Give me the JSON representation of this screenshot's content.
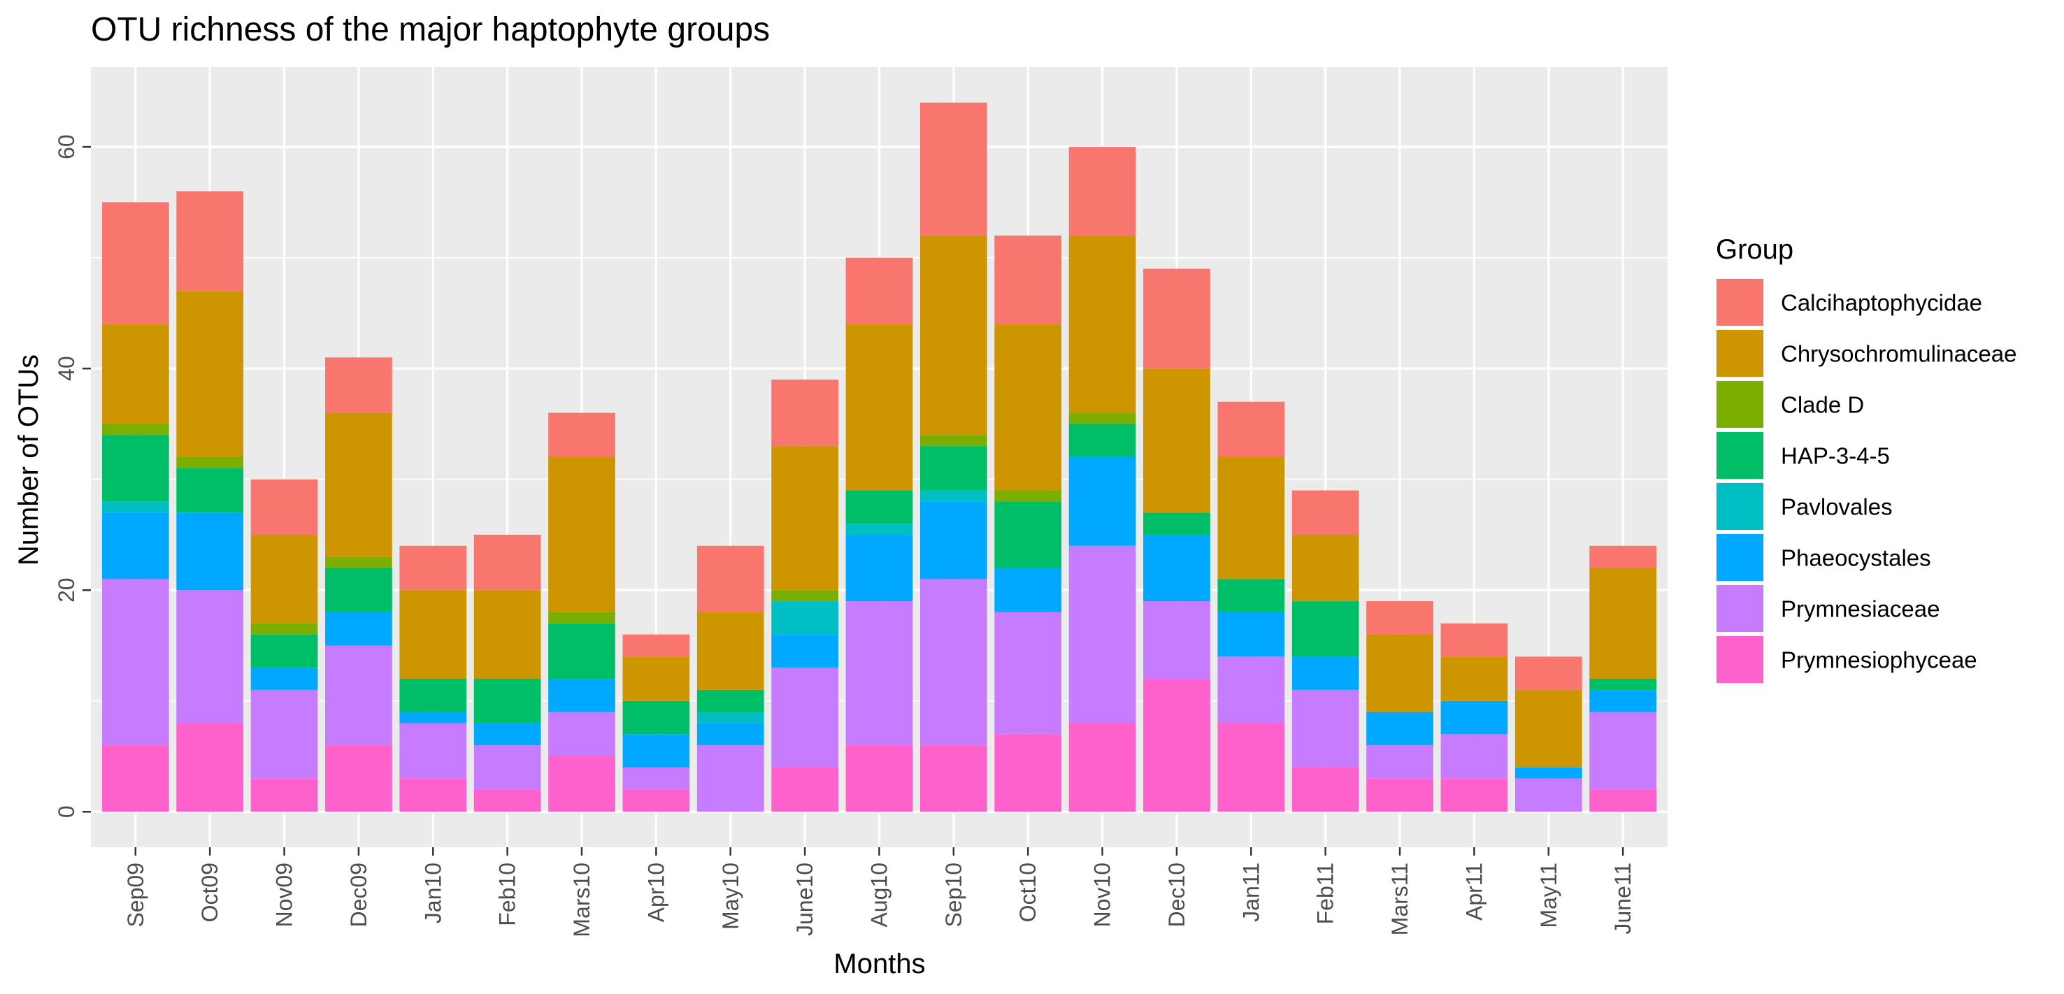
{
  "chart_data": {
    "type": "bar",
    "stacked": true,
    "title": "OTU richness of the major haptophyte groups",
    "xlabel": "Months",
    "ylabel": "Number of OTUs",
    "ylim": [
      -3.2,
      67.2
    ],
    "yticks": [
      0,
      20,
      40,
      60
    ],
    "grid": true,
    "legend_title": "Group",
    "legend_position": "right",
    "categories": [
      "Sep09",
      "Oct09",
      "Nov09",
      "Dec09",
      "Jan10",
      "Feb10",
      "Mars10",
      "Apr10",
      "May10",
      "June10",
      "Aug10",
      "Sep10",
      "Oct10",
      "Nov10",
      "Dec10",
      "Jan11",
      "Feb11",
      "Mars11",
      "Apr11",
      "May11",
      "June11"
    ],
    "series": [
      {
        "name": "Prymnesiophyceae",
        "color": "#FF61CC",
        "values": [
          6,
          8,
          3,
          6,
          3,
          2,
          5,
          2,
          0,
          4,
          6,
          6,
          7,
          8,
          12,
          8,
          4,
          3,
          3,
          0,
          2
        ]
      },
      {
        "name": "Prymnesiaceae",
        "color": "#C77CFF",
        "values": [
          15,
          12,
          8,
          9,
          5,
          4,
          4,
          2,
          6,
          9,
          13,
          15,
          11,
          16,
          7,
          6,
          7,
          3,
          4,
          3,
          7
        ]
      },
      {
        "name": "Phaeocystales",
        "color": "#00A9FF",
        "values": [
          6,
          7,
          2,
          3,
          1,
          2,
          3,
          3,
          2,
          3,
          6,
          7,
          4,
          8,
          6,
          4,
          3,
          3,
          3,
          1,
          2
        ]
      },
      {
        "name": "Pavlovales",
        "color": "#00BFC4",
        "values": [
          1,
          0,
          0,
          0,
          0,
          0,
          0,
          0,
          1,
          3,
          1,
          1,
          0,
          0,
          0,
          0,
          0,
          0,
          0,
          0,
          0
        ]
      },
      {
        "name": "HAP-3-4-5",
        "color": "#00BE67",
        "values": [
          6,
          4,
          3,
          4,
          3,
          4,
          5,
          3,
          2,
          0,
          3,
          4,
          6,
          3,
          2,
          3,
          5,
          0,
          0,
          0,
          1
        ]
      },
      {
        "name": "Clade D",
        "color": "#7CAE00",
        "values": [
          1,
          1,
          1,
          1,
          0,
          0,
          1,
          0,
          0,
          1,
          0,
          1,
          1,
          1,
          0,
          0,
          0,
          0,
          0,
          0,
          0
        ]
      },
      {
        "name": "Chrysochromulinaceae",
        "color": "#CD9600",
        "values": [
          9,
          15,
          8,
          13,
          8,
          8,
          14,
          4,
          7,
          13,
          15,
          18,
          15,
          16,
          13,
          11,
          6,
          7,
          4,
          7,
          10
        ]
      },
      {
        "name": "Calcihaptophycidae",
        "color": "#F8766D",
        "values": [
          11,
          9,
          5,
          5,
          4,
          5,
          4,
          2,
          6,
          6,
          6,
          12,
          8,
          8,
          9,
          5,
          4,
          3,
          3,
          3,
          2
        ]
      }
    ],
    "legend_order": [
      "Calcihaptophycidae",
      "Chrysochromulinaceae",
      "Clade D",
      "HAP-3-4-5",
      "Pavlovales",
      "Phaeocystales",
      "Prymnesiaceae",
      "Prymnesiophyceae"
    ],
    "colors": {
      "panel_background": "#EBEBEB",
      "gridline": "#FFFFFF",
      "text": "#000000",
      "tick_text": "#4D4D4D",
      "tick_mark": "#333333"
    }
  }
}
